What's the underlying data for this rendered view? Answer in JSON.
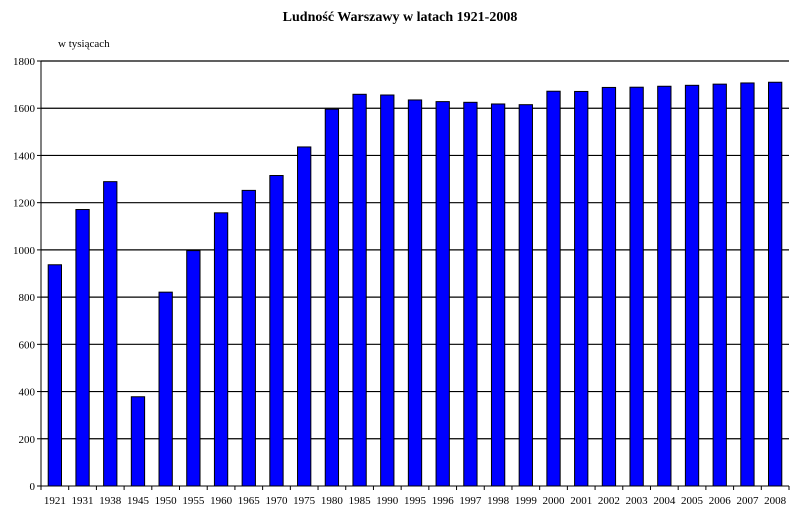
{
  "chart_data": {
    "type": "bar",
    "title": "Ludność Warszawy w latach 1921-2008",
    "ylabel": "w tysiącach",
    "xlabel": "",
    "ylim": [
      0,
      1800
    ],
    "yticks": [
      0,
      200,
      400,
      600,
      800,
      1000,
      1200,
      1400,
      1600,
      1800
    ],
    "grid": "horizontal",
    "legend": "none",
    "bar_color": "#0000ff",
    "categories": [
      "1921",
      "1931",
      "1938",
      "1945",
      "1950",
      "1955",
      "1960",
      "1965",
      "1970",
      "1975",
      "1980",
      "1985",
      "1990",
      "1995",
      "1996",
      "1997",
      "1998",
      "1999",
      "2000",
      "2001",
      "2002",
      "2003",
      "2004",
      "2005",
      "2006",
      "2007",
      "2008"
    ],
    "values": [
      937,
      1171,
      1289,
      378,
      821,
      997,
      1157,
      1252,
      1315,
      1436,
      1596,
      1659,
      1656,
      1635,
      1628,
      1625,
      1618,
      1615,
      1672,
      1671,
      1688,
      1689,
      1693,
      1697,
      1702,
      1707,
      1710
    ]
  }
}
